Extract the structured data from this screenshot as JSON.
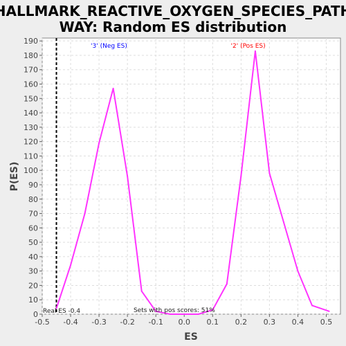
{
  "chart_data": {
    "type": "line",
    "title_line1": "HALLMARK_REACTIVE_OXYGEN_SPECIES_PATH",
    "title_line2": "WAY: Random ES distribution",
    "xlabel": "ES",
    "ylabel": "P(ES)",
    "xlim": [
      -0.5,
      0.55
    ],
    "ylim": [
      0,
      192
    ],
    "xticks": [
      "-0.5",
      "-0.4",
      "-0.3",
      "-0.2",
      "-0.1",
      "0.0",
      "0.1",
      "0.2",
      "0.3",
      "0.4",
      "0.5"
    ],
    "yticks": [
      "0",
      "10",
      "20",
      "30",
      "40",
      "50",
      "60",
      "70",
      "80",
      "90",
      "100",
      "110",
      "120",
      "130",
      "140",
      "150",
      "160",
      "170",
      "180",
      "190"
    ],
    "grid": true,
    "series": [
      {
        "color": "#ff33ff",
        "x": [
          -0.45,
          -0.4,
          -0.35,
          -0.3,
          -0.25,
          -0.2,
          -0.15,
          -0.1,
          -0.05,
          0.0,
          0.05,
          0.1,
          0.15,
          0.2,
          0.25,
          0.3,
          0.35,
          0.4,
          0.45,
          0.51
        ],
        "y": [
          4,
          34,
          70,
          119,
          157,
          96,
          16,
          2,
          0,
          0,
          0,
          3,
          21,
          96,
          183,
          98,
          64,
          30,
          6,
          2
        ]
      }
    ],
    "real_es": -0.45,
    "real_es_label": "Real ES -0.4",
    "neg_label": "'3' (Neg ES)",
    "neg_color": "#0000ff",
    "pos_label": "'2' (Pos ES)",
    "pos_color": "#ff0000",
    "pos_scores_label": "Sets with pos scores: 51%"
  }
}
